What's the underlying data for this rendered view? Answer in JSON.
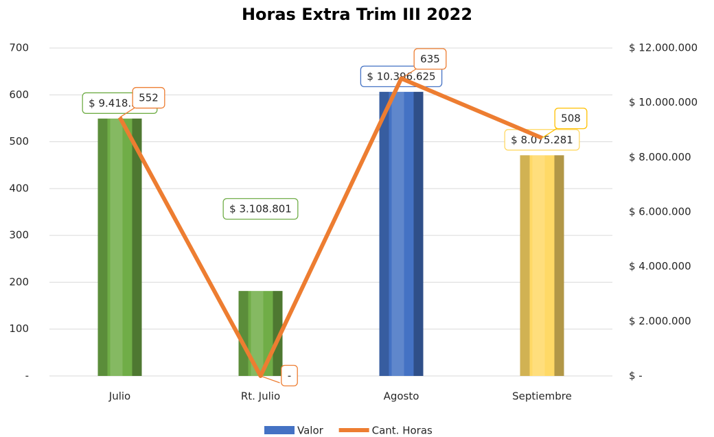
{
  "chart_data": {
    "type": "bar-line",
    "title": "Horas Extra Trim III 2022",
    "categories": [
      "Julio",
      "Rt. Julio",
      "Agosto",
      "Septiembre"
    ],
    "series": [
      {
        "name": "Valor",
        "type": "bar",
        "axis": "y2",
        "color": "#4472c4",
        "colors": [
          "#70ad47",
          "#70ad47",
          "#4472c4",
          "#ffd966"
        ],
        "values": [
          9418537,
          3108801,
          10396625,
          8075281
        ],
        "value_labels": [
          "$ 9.418.537",
          "$ 3.108.801",
          "$ 10.396.625",
          "$ 8.075.281"
        ]
      },
      {
        "name": "Cant. Horas",
        "type": "line",
        "axis": "y",
        "color": "#ed7d31",
        "label_colors": [
          "#ed7d31",
          "#ed7d31",
          "#ed7d31",
          "#ffc000"
        ],
        "values": [
          552,
          0,
          635,
          508
        ],
        "value_labels": [
          "552",
          "-",
          "635",
          "508"
        ]
      }
    ],
    "ylim": [
      0,
      700
    ],
    "yticks": [
      {
        "value": 0,
        "label": "-"
      },
      100,
      200,
      300,
      400,
      500,
      600,
      700
    ],
    "y2lim": [
      0,
      12000000
    ],
    "y2ticks": [
      {
        "value": 0,
        "label": "$ -"
      },
      {
        "value": 2000000,
        "label": "$ 2.000.000"
      },
      {
        "value": 4000000,
        "label": "$ 4.000.000"
      },
      {
        "value": 6000000,
        "label": "$ 6.000.000"
      },
      {
        "value": 8000000,
        "label": "$ 8.000.000"
      },
      {
        "value": 10000000,
        "label": "$ 10.000.000"
      },
      {
        "value": 12000000,
        "label": "$ 12.000.000"
      }
    ],
    "grid": true,
    "legend": "bottom"
  }
}
